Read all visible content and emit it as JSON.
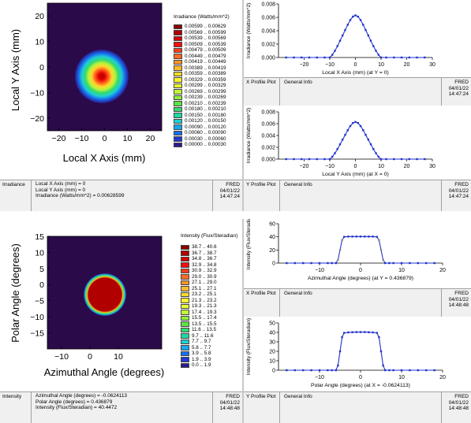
{
  "colors": {
    "map_bg": "#2b0a4a",
    "line_blue": "#2233cc",
    "line_gray": "#888888",
    "strip_bg": "#f0f0f0"
  },
  "irradiance": {
    "y_axis_label": "Local Y Axis (mm)",
    "x_axis_label": "Local X Axis (mm)",
    "x_ticks": [
      "−20",
      "−10",
      "0",
      "10",
      "20"
    ],
    "y_ticks": [
      "20",
      "10",
      "0",
      "−10",
      "−20"
    ],
    "legend_title": "Irradiance (Watts/mm^2)",
    "legend": [
      {
        "label": "0.00599 .. 0.00629",
        "color": "#8b0000"
      },
      {
        "label": "0.00569 .. 0.00599",
        "color": "#b00000"
      },
      {
        "label": "0.00539 .. 0.00569",
        "color": "#d40000"
      },
      {
        "label": "0.00509 .. 0.00539",
        "color": "#f01010"
      },
      {
        "label": "0.00479 .. 0.00509",
        "color": "#ff3b1b"
      },
      {
        "label": "0.00449 .. 0.00479",
        "color": "#ff6a22"
      },
      {
        "label": "0.00419 .. 0.00449",
        "color": "#ff9426"
      },
      {
        "label": "0.00389 .. 0.00419",
        "color": "#ffb92a"
      },
      {
        "label": "0.00359 .. 0.00389",
        "color": "#ffd92c"
      },
      {
        "label": "0.00329 .. 0.00359",
        "color": "#fff22e"
      },
      {
        "label": "0.00299 .. 0.00329",
        "color": "#e8fb34"
      },
      {
        "label": "0.00269 .. 0.00299",
        "color": "#c0f53a"
      },
      {
        "label": "0.00239 .. 0.00269",
        "color": "#90ec3e"
      },
      {
        "label": "0.00210 .. 0.00239",
        "color": "#5fe046"
      },
      {
        "label": "0.00180 .. 0.00210",
        "color": "#34d96e"
      },
      {
        "label": "0.00150 .. 0.00180",
        "color": "#22d6a4"
      },
      {
        "label": "0.00120 .. 0.00150",
        "color": "#1fcfd3"
      },
      {
        "label": "0.00090 .. 0.00120",
        "color": "#1aa6ee"
      },
      {
        "label": "0.00060 .. 0.00090",
        "color": "#1770f0"
      },
      {
        "label": "0.00030 .. 0.00060",
        "color": "#2239d0"
      },
      {
        "label": "0.00000 .. 0.00030",
        "color": "#2b1a8a"
      }
    ],
    "strip_tag": "Irradiance",
    "strip_lines": [
      "Local X Axis (mm) = 0",
      "Local Y Axis (mm) = 0",
      "Irradiance (Watts/mm^2) = 0.00628599"
    ],
    "stamp": [
      "FRED",
      "04/01/22",
      "14:47:24"
    ]
  },
  "irr_x_profile": {
    "ylabel": "Irradiance (Watts/mm^2)",
    "xlabel": "Local X Axis (mm) (at Y = 0)",
    "strip_tag": "X Profile Plot",
    "strip_info": "General Info",
    "stamp": [
      "FRED",
      "04/01/22",
      "14:47:24"
    ]
  },
  "irr_y_profile": {
    "ylabel": "Irradiance (Watts/mm^2)",
    "xlabel": "Local Y Axis (mm) (at X = 0)",
    "strip_tag": "Y Profile Plot",
    "strip_info": "General Info",
    "stamp": [
      "FRED",
      "04/01/22",
      "14:47:24"
    ]
  },
  "intensity": {
    "y_axis_label": "Polar Angle (degrees)",
    "x_axis_label": "Azimuthal Angle (degrees)",
    "x_ticks": [
      "−10",
      "0",
      "10"
    ],
    "y_ticks": [
      "15",
      "10",
      "5",
      "0",
      "−5",
      "−10",
      "−15"
    ],
    "legend_title": "Intensity (Flux/Steradian)",
    "legend": [
      {
        "label": "38.7 .. 40.6",
        "color": "#8b0000"
      },
      {
        "label": "36.7 .. 38.7",
        "color": "#b00000"
      },
      {
        "label": "34.8 .. 36.7",
        "color": "#d40000"
      },
      {
        "label": "32.9 .. 34.8",
        "color": "#f01010"
      },
      {
        "label": "30.9 .. 32.9",
        "color": "#ff3b1b"
      },
      {
        "label": "29.0 .. 30.9",
        "color": "#ff6a22"
      },
      {
        "label": "27.1 .. 29.0",
        "color": "#ff9426"
      },
      {
        "label": "25.1 .. 27.1",
        "color": "#ffb92a"
      },
      {
        "label": "23.2 .. 25.1",
        "color": "#ffd92c"
      },
      {
        "label": "21.3 .. 23.2",
        "color": "#fff22e"
      },
      {
        "label": "19.3 .. 21.3",
        "color": "#e8fb34"
      },
      {
        "label": "17.4 .. 19.3",
        "color": "#c0f53a"
      },
      {
        "label": "15.5 .. 17.4",
        "color": "#90ec3e"
      },
      {
        "label": "13.5 .. 15.5",
        "color": "#5fe046"
      },
      {
        "label": "11.6 .. 13.5",
        "color": "#34d96e"
      },
      {
        "label": "9.7 .. 11.6",
        "color": "#22d6a4"
      },
      {
        "label": "7.7 .. 9.7",
        "color": "#1fcfd3"
      },
      {
        "label": "5.8 .. 7.7",
        "color": "#1aa6ee"
      },
      {
        "label": "3.9 .. 5.8",
        "color": "#1770f0"
      },
      {
        "label": "1.9 .. 3.9",
        "color": "#2239d0"
      },
      {
        "label": "0.0 .. 1.9",
        "color": "#2b1a8a"
      }
    ],
    "strip_tag": "Intensity",
    "strip_lines": [
      "Azimuthal Angle (degrees) = -0.0624113",
      "Polar Angle (degrees) = 0.436879",
      "Intensity (Flux/Steradian) = 40.4472"
    ],
    "stamp": [
      "FRED",
      "04/01/22",
      "14:48:48"
    ]
  },
  "int_x_profile": {
    "ylabel": "Intensity (Flux/Steradia",
    "xlabel": "Azimuthal Angle (degrees) (at Y = 0.436879)",
    "strip_tag": "X Profile Plot",
    "strip_info": "General Info",
    "stamp": [
      "FRED",
      "04/01/22",
      "14:48:48"
    ]
  },
  "int_y_profile": {
    "ylabel": "Intensity (Flux/Steradian)",
    "xlabel": "Polar Angle (degrees) (at X = -0.0624113)",
    "strip_tag": "Y Profile Plot",
    "strip_info": "General Info",
    "stamp": [
      "FRED",
      "04/01/22",
      "14:48:48"
    ]
  },
  "chart_data": [
    {
      "type": "line",
      "title": "",
      "xlabel": "Local X Axis (mm) (at Y = 0)",
      "ylabel": "Irradiance (Watts/mm^2)",
      "xlim": [
        -30,
        30
      ],
      "ylim": [
        0,
        0.008
      ],
      "x_ticks": [
        -20,
        -10,
        0,
        10,
        20,
        30
      ],
      "y_ticks": [
        "0.000",
        "0.002",
        "0.004",
        "0.006",
        "0.008"
      ],
      "x": [
        -27,
        -24,
        -21,
        -18,
        -15,
        -12,
        -10,
        -9,
        -8,
        -7,
        -6,
        -5,
        -4,
        -3,
        -2,
        -1,
        0,
        1,
        2,
        3,
        4,
        5,
        6,
        7,
        8,
        9,
        10,
        12,
        15,
        18,
        21,
        24,
        27
      ],
      "y": [
        0,
        0,
        0,
        0,
        0,
        0,
        0,
        0.0004,
        0.001,
        0.0017,
        0.0025,
        0.0033,
        0.0041,
        0.0049,
        0.0056,
        0.0061,
        0.0063,
        0.0061,
        0.0056,
        0.0049,
        0.0041,
        0.0033,
        0.0025,
        0.0017,
        0.001,
        0.0004,
        0,
        0,
        0,
        0,
        0,
        0,
        0
      ]
    },
    {
      "type": "line",
      "title": "",
      "xlabel": "Local Y Axis (mm) (at X = 0)",
      "ylabel": "Irradiance (Watts/mm^2)",
      "xlim": [
        -30,
        30
      ],
      "ylim": [
        0,
        0.008
      ],
      "x_ticks": [
        -20,
        -10,
        0,
        10,
        20,
        30
      ],
      "y_ticks": [
        "0.000",
        "0.002",
        "0.004",
        "0.006",
        "0.008"
      ],
      "x": [
        -27,
        -24,
        -21,
        -18,
        -15,
        -12,
        -10,
        -9,
        -8,
        -7,
        -6,
        -5,
        -4,
        -3,
        -2,
        -1,
        0,
        1,
        2,
        3,
        4,
        5,
        6,
        7,
        8,
        9,
        10,
        12,
        15,
        18,
        21,
        24,
        27
      ],
      "y": [
        0,
        0,
        0,
        0,
        0,
        0,
        0,
        0.0004,
        0.001,
        0.0017,
        0.0025,
        0.0033,
        0.0041,
        0.0049,
        0.0056,
        0.0061,
        0.0063,
        0.0061,
        0.0056,
        0.0049,
        0.0041,
        0.0033,
        0.0025,
        0.0017,
        0.001,
        0.0004,
        0,
        0,
        0,
        0,
        0,
        0,
        0
      ]
    },
    {
      "type": "line",
      "title": "",
      "xlabel": "Azimuthal Angle (degrees) (at Y = 0.436879)",
      "ylabel": "Intensity (Flux/Steradia",
      "xlim": [
        -20,
        20
      ],
      "ylim": [
        0,
        60
      ],
      "x_ticks": [
        -10,
        0,
        10,
        20
      ],
      "y_ticks": [
        0,
        20,
        40,
        60
      ],
      "x": [
        -18,
        -16,
        -14,
        -12,
        -10,
        -8,
        -7,
        -6,
        -5.5,
        -5,
        -4.5,
        -4,
        -3,
        -2,
        -1,
        0,
        1,
        2,
        3,
        4,
        4.5,
        5,
        5.5,
        6,
        7,
        8,
        10,
        12,
        14,
        16,
        18
      ],
      "y": [
        0,
        0,
        0,
        0,
        0,
        0,
        0,
        0,
        5,
        20,
        35,
        40,
        40.4,
        40.5,
        40.5,
        40.5,
        40.5,
        40.5,
        40.4,
        40,
        35,
        20,
        5,
        0,
        0,
        0,
        0,
        0,
        0,
        0,
        0
      ]
    },
    {
      "type": "line",
      "title": "",
      "xlabel": "Polar Angle (degrees) (at X = -0.0624113)",
      "ylabel": "Intensity (Flux/Steradian)",
      "xlim": [
        -20,
        20
      ],
      "ylim": [
        0,
        50
      ],
      "x_ticks": [
        -10,
        0,
        10,
        20
      ],
      "y_ticks": [
        0,
        10,
        20,
        30,
        40,
        50
      ],
      "x": [
        -18,
        -16,
        -14,
        -12,
        -10,
        -8,
        -7,
        -6,
        -5.5,
        -5,
        -4.5,
        -4,
        -3,
        -2,
        -1,
        0,
        1,
        2,
        3,
        4,
        4.5,
        5,
        5.5,
        6,
        7,
        8,
        10,
        12,
        14,
        16,
        18
      ],
      "y": [
        0,
        0,
        0,
        0,
        0,
        0,
        0,
        0,
        5,
        20,
        35,
        39.5,
        40,
        40.2,
        40.3,
        40.3,
        40.3,
        40.2,
        40,
        39.5,
        35,
        20,
        5,
        0,
        0,
        0,
        0,
        0,
        0,
        0,
        0
      ]
    }
  ]
}
